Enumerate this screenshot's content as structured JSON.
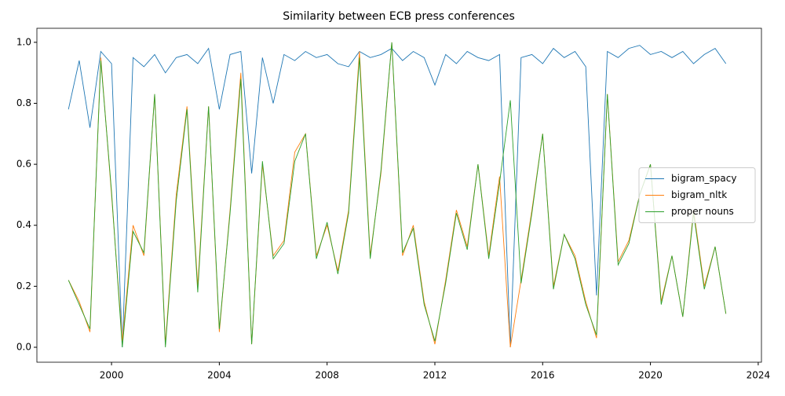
{
  "chart_data": {
    "type": "line",
    "title": "Similarity between ECB press conferences",
    "x": [
      1998.4,
      1998.8,
      1999.2,
      1999.6,
      2000.0,
      2000.4,
      2000.8,
      2001.2,
      2001.6,
      2002.0,
      2002.4,
      2002.8,
      2003.2,
      2003.6,
      2004.0,
      2004.4,
      2004.8,
      2005.2,
      2005.6,
      2006.0,
      2006.4,
      2006.8,
      2007.2,
      2007.6,
      2008.0,
      2008.4,
      2008.8,
      2009.2,
      2009.6,
      2010.0,
      2010.4,
      2010.8,
      2011.2,
      2011.6,
      2012.0,
      2012.4,
      2012.8,
      2013.2,
      2013.6,
      2014.0,
      2014.4,
      2014.8,
      2015.2,
      2015.6,
      2016.0,
      2016.4,
      2016.8,
      2017.2,
      2017.6,
      2018.0,
      2018.4,
      2018.8,
      2019.2,
      2019.6,
      2020.0,
      2020.4,
      2020.8,
      2021.2,
      2021.6,
      2022.0,
      2022.4,
      2022.8
    ],
    "series": [
      {
        "name": "bigram_spacy",
        "color": "#1f77b4",
        "values": [
          0.78,
          0.94,
          0.72,
          0.97,
          0.93,
          0.0,
          0.95,
          0.92,
          0.96,
          0.9,
          0.95,
          0.96,
          0.93,
          0.98,
          0.78,
          0.96,
          0.97,
          0.57,
          0.95,
          0.8,
          0.96,
          0.94,
          0.97,
          0.95,
          0.96,
          0.93,
          0.92,
          0.97,
          0.95,
          0.96,
          0.98,
          0.94,
          0.97,
          0.95,
          0.86,
          0.96,
          0.93,
          0.97,
          0.95,
          0.94,
          0.96,
          0.0,
          0.95,
          0.96,
          0.93,
          0.98,
          0.95,
          0.97,
          0.92,
          0.17,
          0.97,
          0.95,
          0.98,
          0.99,
          0.96,
          0.97,
          0.95,
          0.97,
          0.93,
          0.96,
          0.98,
          0.93
        ]
      },
      {
        "name": "bigram_nltk",
        "color": "#ff7f0e",
        "values": [
          0.22,
          0.15,
          0.05,
          0.95,
          0.5,
          0.02,
          0.4,
          0.3,
          0.83,
          0.01,
          0.5,
          0.79,
          0.2,
          0.79,
          0.05,
          0.45,
          0.9,
          0.01,
          0.6,
          0.3,
          0.35,
          0.64,
          0.7,
          0.3,
          0.4,
          0.25,
          0.45,
          0.97,
          0.3,
          0.57,
          1.0,
          0.3,
          0.4,
          0.15,
          0.01,
          0.22,
          0.45,
          0.33,
          0.6,
          0.3,
          0.56,
          0.0,
          0.22,
          0.45,
          0.7,
          0.2,
          0.37,
          0.3,
          0.15,
          0.03,
          0.83,
          0.28,
          0.35,
          0.5,
          0.6,
          0.15,
          0.3,
          0.1,
          0.45,
          0.2,
          0.33,
          0.11
        ]
      },
      {
        "name": "proper nouns",
        "color": "#2ca02c",
        "values": [
          0.22,
          0.14,
          0.06,
          0.94,
          0.51,
          0.0,
          0.38,
          0.31,
          0.83,
          0.0,
          0.48,
          0.78,
          0.18,
          0.79,
          0.06,
          0.44,
          0.88,
          0.01,
          0.61,
          0.29,
          0.34,
          0.61,
          0.7,
          0.29,
          0.41,
          0.24,
          0.44,
          0.95,
          0.29,
          0.58,
          1.0,
          0.31,
          0.39,
          0.14,
          0.02,
          0.21,
          0.44,
          0.32,
          0.6,
          0.29,
          0.54,
          0.81,
          0.21,
          0.44,
          0.7,
          0.19,
          0.37,
          0.29,
          0.14,
          0.04,
          0.83,
          0.27,
          0.34,
          0.5,
          0.6,
          0.14,
          0.3,
          0.1,
          0.44,
          0.19,
          0.33,
          0.11
        ]
      }
    ],
    "xlim": [
      1997.23,
      2024.12
    ],
    "xticks": [
      2000,
      2004,
      2008,
      2012,
      2016,
      2020,
      2024
    ],
    "ylim": [
      -0.049,
      1.046
    ],
    "yticks": [
      {
        "value": 0,
        "label": "0.0"
      },
      {
        "value": 0.2,
        "label": "0.2"
      },
      {
        "value": 0.4,
        "label": "0.4"
      },
      {
        "value": 0.6,
        "label": "0.6"
      },
      {
        "value": 0.8,
        "label": "0.8"
      },
      {
        "value": 1,
        "label": "1.0"
      }
    ],
    "legend": "center right"
  }
}
